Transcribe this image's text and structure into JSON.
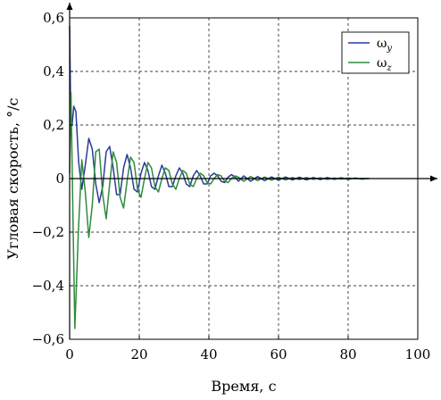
{
  "chart_data": {
    "type": "line",
    "xlabel": "Время, с",
    "ylabel": "Угловая скорость, °/с",
    "xlim": [
      0,
      100
    ],
    "ylim": [
      -0.6,
      0.6
    ],
    "x_ticks": [
      0,
      20,
      40,
      60,
      80,
      100
    ],
    "x_tick_labels": [
      "0",
      "20",
      "40",
      "60",
      "80",
      "100"
    ],
    "y_ticks": [
      -0.6,
      -0.4,
      -0.2,
      0,
      0.2,
      0.4,
      0.6
    ],
    "y_tick_labels": [
      "−0,6",
      "−0,4",
      "−0,2",
      "0",
      "0,2",
      "0,4",
      "0,6"
    ],
    "grid": true,
    "legend_position": "top-right",
    "series": [
      {
        "name_base": "ω",
        "name_sub": "y",
        "color": "#2b3a9c",
        "x": [
          0,
          0.3,
          0.7,
          1.2,
          1.8,
          2.6,
          3.5,
          4.5,
          5.5,
          6.5,
          7.5,
          8.5,
          9.5,
          10.5,
          11.5,
          12.5,
          13.5,
          14.5,
          15.5,
          16.5,
          17.5,
          18.5,
          19.5,
          20.5,
          21.5,
          22.5,
          23.5,
          24.5,
          25.5,
          26.5,
          27.5,
          28.5,
          29.5,
          30.5,
          31.5,
          32.5,
          33.5,
          34.5,
          35.5,
          36.5,
          37.5,
          38.5,
          39.5,
          40.5,
          41.5,
          42.5,
          43.5,
          44.5,
          45.5,
          46.5,
          47.5,
          48.5,
          50,
          52,
          54,
          56,
          58,
          60,
          62,
          64,
          66,
          68,
          70,
          72,
          74,
          76,
          78,
          80,
          82,
          84,
          86
        ],
        "y": [
          0.57,
          0.25,
          0.2,
          0.27,
          0.25,
          0.06,
          -0.04,
          0.05,
          0.15,
          0.11,
          -0.02,
          -0.09,
          -0.03,
          0.1,
          0.12,
          0.04,
          -0.06,
          -0.06,
          0.04,
          0.09,
          0.04,
          -0.04,
          -0.05,
          0.02,
          0.06,
          0.03,
          -0.03,
          -0.04,
          0.01,
          0.05,
          0.02,
          -0.03,
          -0.03,
          0.01,
          0.04,
          0.02,
          -0.02,
          -0.03,
          0.01,
          0.03,
          0.01,
          -0.02,
          -0.02,
          0.01,
          0.02,
          0.01,
          -0.01,
          -0.015,
          0.005,
          0.015,
          0.005,
          -0.01,
          0.01,
          -0.01,
          0.008,
          -0.008,
          0.006,
          -0.006,
          0.006,
          -0.005,
          0.005,
          -0.005,
          0.004,
          -0.004,
          0.004,
          -0.003,
          0.003,
          -0.003,
          0.002,
          -0.002,
          0.001
        ]
      },
      {
        "name_base": "ω",
        "name_sub": "z",
        "color": "#2e8b3c",
        "x": [
          0,
          0.4,
          0.9,
          1.5,
          2.5,
          3.5,
          4.5,
          5.5,
          6.5,
          7.5,
          8.5,
          9.5,
          10.5,
          11.5,
          12.5,
          13.5,
          14.5,
          15.5,
          16.5,
          17.5,
          18.5,
          19.5,
          20.5,
          21.5,
          22.5,
          23.5,
          24.5,
          25.5,
          26.5,
          27.5,
          28.5,
          29.5,
          30.5,
          31.5,
          32.5,
          33.5,
          34.5,
          35.5,
          36.5,
          37.5,
          38.5,
          39.5,
          40.5,
          41.5,
          42.5,
          43.5,
          44.5,
          45.5,
          46.5,
          47.5,
          48.5,
          50,
          52,
          54,
          56,
          58,
          60,
          62,
          64,
          66,
          68,
          70,
          72,
          74,
          76,
          78,
          80,
          82,
          84,
          86
        ],
        "y": [
          0.02,
          0.32,
          -0.1,
          -0.56,
          -0.2,
          0.07,
          -0.05,
          -0.22,
          -0.1,
          0.1,
          0.11,
          -0.06,
          -0.15,
          -0.02,
          0.1,
          0.06,
          -0.07,
          -0.11,
          -0.01,
          0.08,
          0.06,
          -0.04,
          -0.07,
          0.0,
          0.06,
          0.04,
          -0.03,
          -0.05,
          0.0,
          0.04,
          0.03,
          -0.02,
          -0.04,
          0.0,
          0.03,
          0.02,
          -0.02,
          -0.03,
          0.0,
          0.02,
          0.01,
          -0.015,
          -0.02,
          0.0,
          0.015,
          0.01,
          -0.01,
          -0.015,
          0.0,
          0.01,
          0.005,
          -0.01,
          0.008,
          -0.008,
          0.006,
          -0.006,
          0.005,
          -0.005,
          0.004,
          -0.004,
          0.004,
          -0.003,
          0.003,
          -0.003,
          0.002,
          -0.002,
          0.002,
          -0.001,
          0.001,
          0.0
        ]
      }
    ]
  }
}
